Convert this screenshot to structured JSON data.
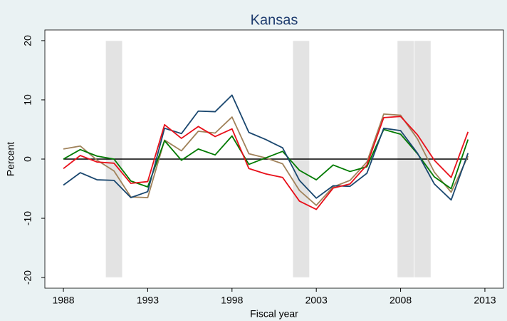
{
  "chart_data": {
    "type": "line",
    "title": "Kansas",
    "x_label": "Fiscal year",
    "y_label": "Percent",
    "x": [
      1988,
      1989,
      1990,
      1991,
      1992,
      1993,
      1994,
      1995,
      1996,
      1997,
      1998,
      1999,
      2000,
      2001,
      2002,
      2003,
      2004,
      2005,
      2006,
      2007,
      2008,
      2009,
      2010,
      2011,
      2012
    ],
    "series": [
      {
        "color": "#a0825a",
        "values": [
          1.7,
          2.2,
          -0.2,
          -2.0,
          -6.4,
          -6.5,
          3.2,
          1.4,
          4.7,
          4.4,
          7.1,
          0.9,
          0.2,
          -0.8,
          -5.3,
          -7.8,
          -4.7,
          -3.6,
          -0.5,
          7.6,
          7.4,
          3.4,
          -2.2,
          -5.6,
          0.5
        ]
      },
      {
        "color": "#007a00",
        "values": [
          0.0,
          1.6,
          0.5,
          0.0,
          -3.7,
          -4.7,
          3.1,
          -0.2,
          1.7,
          0.7,
          3.9,
          -0.9,
          0.2,
          1.3,
          -1.9,
          -3.5,
          -1.0,
          -2.1,
          -1.3,
          5.0,
          4.2,
          0.9,
          -3.0,
          -5.0,
          3.3
        ]
      },
      {
        "color": "#1a476f",
        "values": [
          -4.4,
          -2.3,
          -3.5,
          -3.6,
          -6.5,
          -5.5,
          5.2,
          4.3,
          8.1,
          8.0,
          10.8,
          4.5,
          3.3,
          1.9,
          -3.6,
          -6.6,
          -4.5,
          -4.6,
          -2.4,
          5.2,
          4.8,
          1.0,
          -4.2,
          -6.9,
          1.0
        ]
      },
      {
        "color": "#e8101a",
        "values": [
          -1.6,
          0.6,
          -0.5,
          -0.7,
          -4.1,
          -3.8,
          5.8,
          3.5,
          5.5,
          3.8,
          5.1,
          -1.6,
          -2.5,
          -3.1,
          -7.1,
          -8.5,
          -4.9,
          -4.2,
          -1.0,
          7.0,
          7.2,
          4.1,
          -0.2,
          -3.1,
          4.6
        ]
      }
    ],
    "shaded_spans": [
      [
        1990.5,
        1991.5
      ],
      [
        2001.6,
        2002.6
      ],
      [
        2007.8,
        2008.8
      ],
      [
        2008.8,
        2009.8
      ]
    ],
    "shade_color": "#e3e3e3",
    "hline": 0,
    "xlim": [
      1986.9,
      2014.1
    ],
    "xticks": [
      1988,
      1993,
      1998,
      2003,
      2008,
      2013
    ],
    "ylim": [
      -21.8,
      21.8
    ],
    "yticks": [
      -20,
      -10,
      0,
      10,
      20
    ],
    "grid": false
  }
}
